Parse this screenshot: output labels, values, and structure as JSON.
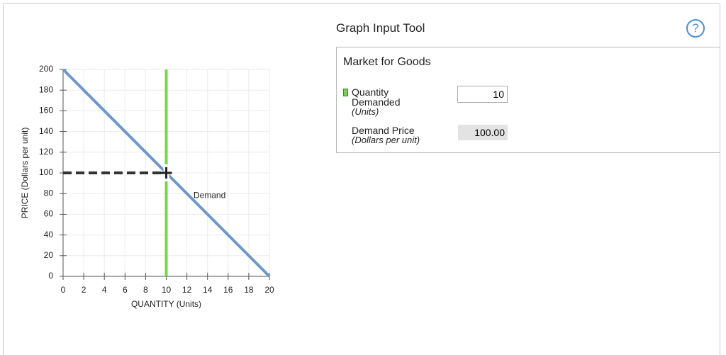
{
  "chart_data": {
    "type": "line",
    "x_label": "QUANTITY (Units)",
    "y_label": "PRICE (Dollars per unit)",
    "xlim": [
      0,
      20
    ],
    "ylim": [
      0,
      200
    ],
    "xticks": [
      0,
      2,
      4,
      6,
      8,
      10,
      12,
      14,
      16,
      18,
      20
    ],
    "yticks": [
      0,
      20,
      40,
      60,
      80,
      100,
      120,
      140,
      160,
      180,
      200
    ],
    "grid": true,
    "series": [
      {
        "name": "Demand",
        "color": "#6e98c9",
        "x": [
          0,
          20
        ],
        "values": [
          200,
          0
        ]
      }
    ]
  },
  "panel": {
    "title": "Graph Input Tool",
    "subtitle": "Market for Goods",
    "fields": [
      {
        "label": "Quantity Demanded",
        "unit": "(Units)",
        "value": 10,
        "color": "#77d44f"
      },
      {
        "label": "Demand Price",
        "unit": "(Dollars per unit)",
        "value": 100,
        "value_label": "100.00",
        "color": "#333333"
      }
    ]
  }
}
